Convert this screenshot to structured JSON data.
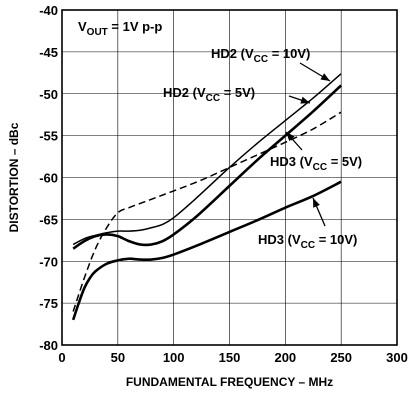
{
  "chart_data": {
    "type": "line",
    "title": "",
    "xlabel": "FUNDAMENTAL FREQUENCY – MHz",
    "ylabel": "DISTORTION – dBc",
    "xlim": [
      0,
      300
    ],
    "ylim": [
      -80,
      -40
    ],
    "xticks": [
      0,
      50,
      100,
      150,
      200,
      250,
      300
    ],
    "yticks": [
      -80,
      -75,
      -70,
      -65,
      -60,
      -55,
      -50,
      -45,
      -40
    ],
    "grid": true,
    "inset_note": {
      "main": "V",
      "sub": "OUT",
      "rest": " = 1V p-p"
    },
    "series": [
      {
        "name": "HD2 (VCC = 10V)",
        "label": {
          "main": "HD2 (V",
          "sub": "CC",
          "rest": " = 10V)"
        },
        "style": "thin-solid",
        "x": [
          10,
          20,
          30,
          40,
          50,
          60,
          70,
          80,
          90,
          100,
          120,
          150,
          175,
          200,
          225,
          250
        ],
        "y": [
          -68.0,
          -67.3,
          -66.9,
          -66.6,
          -66.4,
          -66.4,
          -66.3,
          -66.0,
          -65.6,
          -64.8,
          -62.5,
          -58.8,
          -55.9,
          -53.2,
          -50.5,
          -47.6
        ]
      },
      {
        "name": "HD2 (VCC = 5V)",
        "label": {
          "main": "HD2 (V",
          "sub": "CC",
          "rest": " = 5V)"
        },
        "style": "thick-solid",
        "x": [
          10,
          20,
          30,
          40,
          50,
          60,
          70,
          80,
          90,
          100,
          120,
          150,
          175,
          200,
          225,
          250
        ],
        "y": [
          -68.5,
          -67.6,
          -67.0,
          -66.8,
          -67.0,
          -67.6,
          -68.0,
          -68.0,
          -67.6,
          -66.8,
          -64.7,
          -61.0,
          -57.9,
          -55.0,
          -52.1,
          -49.0
        ]
      },
      {
        "name": "HD3 (VCC = 5V)",
        "label": {
          "main": "HD3 (V",
          "sub": "CC",
          "rest": " = 5V)"
        },
        "style": "dashed",
        "x": [
          10,
          20,
          30,
          40,
          50,
          60,
          70,
          80,
          100,
          125,
          150,
          175,
          200,
          225,
          250
        ],
        "y": [
          -76.0,
          -72.0,
          -68.5,
          -66.0,
          -64.2,
          -63.6,
          -63.1,
          -62.6,
          -61.6,
          -60.3,
          -58.8,
          -57.3,
          -55.8,
          -54.2,
          -52.2
        ]
      },
      {
        "name": "HD3 (VCC = 10V)",
        "label": {
          "main": "HD3 (V",
          "sub": "CC",
          "rest": " = 10V)"
        },
        "style": "thick-solid",
        "x": [
          10,
          15,
          20,
          25,
          30,
          40,
          50,
          60,
          70,
          80,
          90,
          100,
          125,
          150,
          175,
          200,
          225,
          250
        ],
        "y": [
          -77.0,
          -75.0,
          -73.2,
          -72.0,
          -71.2,
          -70.3,
          -69.9,
          -69.7,
          -69.8,
          -69.8,
          -69.6,
          -69.2,
          -67.9,
          -66.5,
          -65.1,
          -63.6,
          -62.2,
          -60.5
        ]
      }
    ]
  }
}
